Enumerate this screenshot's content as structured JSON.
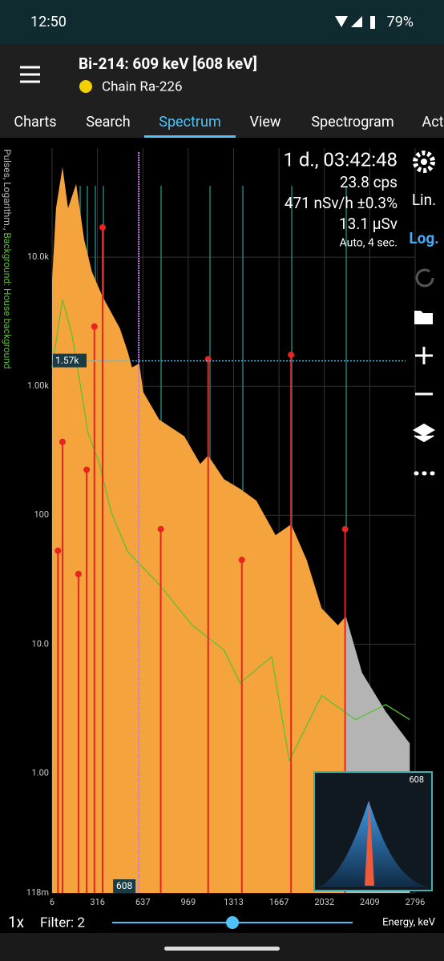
{
  "status_bar": {
    "time": "12:50",
    "battery": "79%"
  },
  "header": {
    "title": "Bi-214: 609 keV [608 keV]",
    "subtitle": "Chain Ra-226"
  },
  "tabs": [
    "Charts",
    "Search",
    "Spectrum",
    "View",
    "Spectrogram",
    "Act"
  ],
  "selected_tab": 2,
  "stats": [
    "1 d., 03:42:48",
    "23.8 cps",
    "471 nSv/h ±0.3%",
    "13.1 µSv",
    "Auto, 4 sec."
  ],
  "toolbar": {
    "linear": "Lin.",
    "log": "Log."
  },
  "chart": {
    "type": "area",
    "log_scale": true,
    "y_title": "Pulses, Logarithm., ",
    "background_title": "Background: House background",
    "x_label": "Energy, keV",
    "xlim": [
      6,
      2796
    ],
    "xticks": [
      6,
      316,
      637,
      969,
      1313,
      1667,
      2032,
      2409,
      2796
    ],
    "ylim": [
      0.118,
      70000
    ],
    "yticks": [
      {
        "value": 0.118,
        "label": "118m"
      },
      {
        "value": 1,
        "label": "1.00"
      },
      {
        "value": 10,
        "label": "10.0"
      },
      100,
      {
        "value": 1000,
        "label": "1.00k"
      },
      {
        "value": 10000,
        "label": "10.0k"
      }
    ],
    "series": [
      {
        "color": "#f4a33d",
        "x": [
          6,
          33,
          77,
          115,
          170,
          225,
          278,
          350,
          475,
          530,
          560,
          612,
          640,
          757,
          940,
          1060,
          1120,
          1240,
          1363,
          1490,
          1640,
          1765,
          1890,
          2010,
          2145,
          2210
        ],
        "values": [
          6700,
          24000,
          50000,
          24000,
          37000,
          13700,
          7700,
          5000,
          2800,
          1850,
          1400,
          1500,
          900,
          550,
          410,
          250,
          290,
          190,
          160,
          130,
          70,
          85,
          45,
          19,
          14,
          16.5
        ]
      },
      {
        "color": "#b4b4b4",
        "x": [
          2210,
          2345,
          2545,
          2750
        ],
        "values": [
          16.5,
          6,
          3,
          1.7
        ]
      },
      {
        "color": "#5cc232",
        "x": [
          6,
          77,
          142,
          197,
          250,
          330,
          414,
          530,
          757,
          1000,
          1240,
          1363,
          1610,
          1750,
          2010,
          2290,
          2545,
          2750
        ],
        "values": [
          1400,
          4700,
          2500,
          1050,
          440,
          250,
          105,
          52,
          29,
          14,
          9,
          5,
          8,
          1.25,
          4,
          2.6,
          3.4,
          2.6
        ]
      }
    ],
    "markers": {
      "color": "#e8241e",
      "x": [
        46,
        77,
        186,
        242,
        295,
        352,
        768,
        1120,
        1377,
        1764,
        2204
      ],
      "values": [
        53,
        370,
        35,
        225,
        2900,
        17000,
        78,
        1620,
        45,
        1750,
        78
      ]
    },
    "cursor": {
      "x": {
        "value": 608,
        "label": "608"
      },
      "y": {
        "value": 1570,
        "label": "1.57k"
      }
    },
    "inset_label": "608"
  },
  "bottom_bar": {
    "zoom": "1x",
    "filter": "Filter: 2"
  }
}
